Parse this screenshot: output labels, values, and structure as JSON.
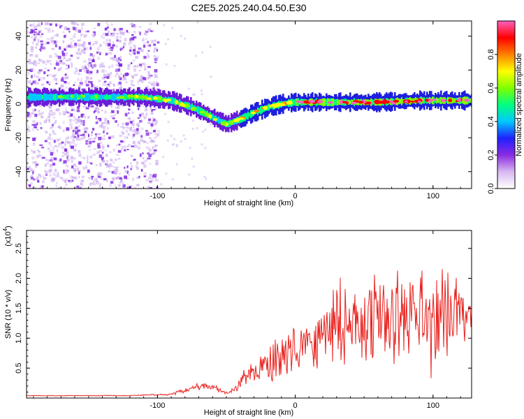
{
  "title": "C2E5.2025.240.04.50.E30",
  "chart_data": [
    {
      "type": "heatmap",
      "name": "spectrogram",
      "xlabel": "Height of straight line (km)",
      "ylabel": "Frequency (Hz)",
      "xlim": [
        -195,
        128
      ],
      "ylim": [
        -50,
        49
      ],
      "xticks": [
        -100,
        0,
        100
      ],
      "xtick_labels": [
        "-100",
        "0",
        "100"
      ],
      "yticks": [
        40,
        20,
        0,
        -20,
        -40
      ],
      "ytick_labels": [
        "40",
        "20",
        "0",
        "-20",
        "-40"
      ],
      "ridge": {
        "x": [
          -195,
          -150,
          -110,
          -90,
          -75,
          -60,
          -50,
          -40,
          -30,
          -20,
          -10,
          0,
          30,
          60,
          90,
          128
        ],
        "freq": [
          4,
          4,
          4,
          2,
          -2,
          -8,
          -12,
          -9,
          -5,
          -2,
          0,
          1,
          1,
          1,
          2,
          2
        ]
      },
      "colorbar": {
        "label": "Normalized spectral amplitude",
        "range": [
          0,
          1
        ],
        "ticks": [
          0.0,
          0.2,
          0.4,
          0.6,
          0.8
        ],
        "tick_labels": [
          "0.0",
          "0.2",
          "0.4",
          "0.6",
          "0.8"
        ],
        "colors": [
          "#ffffff",
          "#d8b8f0",
          "#8a2be2",
          "#2020ff",
          "#00c8ff",
          "#00ff80",
          "#80ff00",
          "#ffff00",
          "#ff8000",
          "#ff0000",
          "#ff60c0"
        ]
      }
    },
    {
      "type": "line",
      "name": "snr",
      "xlabel": "Height of straight line (km)",
      "ylabel": "SNR (10 * v/v)",
      "y_scale_label": "(x10",
      "y_scale_exp": "4",
      "xlim": [
        -195,
        128
      ],
      "ylim": [
        0,
        2.8
      ],
      "xticks": [
        -100,
        0,
        100
      ],
      "xtick_labels": [
        "-100",
        "0",
        "100"
      ],
      "yticks": [
        0.5,
        1.0,
        1.5,
        2.0,
        2.5
      ],
      "ytick_labels": [
        "0.5",
        "1.0",
        "1.5",
        "2.0",
        "2.5"
      ],
      "color": "#e8201c",
      "envelope": {
        "x": [
          -195,
          -120,
          -90,
          -80,
          -70,
          -60,
          -50,
          -42,
          -38,
          -30,
          -20,
          -10,
          0,
          10,
          20,
          25,
          40,
          60,
          80,
          100,
          115,
          128
        ],
        "mean": [
          0.04,
          0.04,
          0.06,
          0.12,
          0.2,
          0.18,
          0.08,
          0.15,
          0.35,
          0.45,
          0.55,
          0.65,
          0.8,
          0.95,
          1.05,
          1.2,
          1.3,
          1.3,
          1.35,
          1.4,
          1.4,
          1.4
        ],
        "amp": [
          0.005,
          0.01,
          0.02,
          0.06,
          0.08,
          0.08,
          0.03,
          0.1,
          0.2,
          0.25,
          0.35,
          0.45,
          0.5,
          0.55,
          0.6,
          1.0,
          0.9,
          0.9,
          1.0,
          1.2,
          0.7,
          0.4
        ]
      }
    }
  ]
}
